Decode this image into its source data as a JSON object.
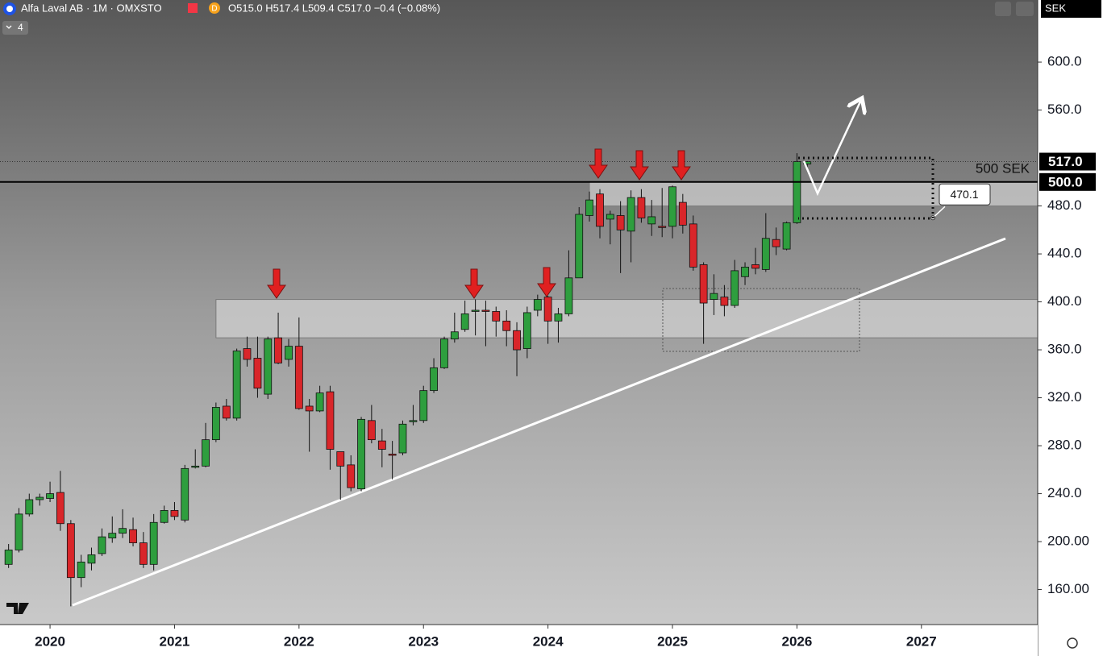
{
  "chart_data": {
    "type": "candlestick",
    "title": "Alfa Laval AB · 1M · OMXSTO",
    "badge": "D",
    "ohlc_text": "O515.0 H517.4 L509.4 C517.0 −0.4 (−0.08%)",
    "indicators_count": "4",
    "currency": "SEK",
    "up_color": "#2e9e3e",
    "down_color": "#d9262a",
    "x": [
      2019.667,
      2019.75,
      2019.833,
      2019.917,
      2020,
      2020.083,
      2020.167,
      2020.25,
      2020.333,
      2020.417,
      2020.5,
      2020.583,
      2020.667,
      2020.75,
      2020.833,
      2020.917,
      2021,
      2021.083,
      2021.167,
      2021.25,
      2021.333,
      2021.417,
      2021.5,
      2021.583,
      2021.667,
      2021.75,
      2021.833,
      2021.917,
      2022,
      2022.083,
      2022.167,
      2022.25,
      2022.333,
      2022.417,
      2022.5,
      2022.583,
      2022.667,
      2022.75,
      2022.833,
      2022.917,
      2023,
      2023.083,
      2023.167,
      2023.25,
      2023.333,
      2023.417,
      2023.5,
      2023.583,
      2023.667,
      2023.75,
      2023.833,
      2023.917,
      2024,
      2024.083,
      2024.167,
      2024.25,
      2024.333,
      2024.417,
      2024.5,
      2024.583,
      2024.667,
      2024.75,
      2024.833,
      2024.917,
      2025,
      2025.083,
      2025.167,
      2025.25,
      2025.333,
      2025.417,
      2025.5,
      2025.583,
      2025.667,
      2025.75,
      2025.833,
      2025.917,
      2026,
      2026.083
    ],
    "open": [
      181,
      193,
      223,
      235,
      236,
      241,
      215,
      170,
      182,
      190,
      203,
      207,
      210,
      199,
      181,
      216,
      226,
      218,
      262,
      263,
      285,
      313,
      303,
      361,
      353,
      323,
      370,
      352,
      363,
      313,
      309,
      325,
      275,
      264,
      244,
      301,
      284,
      273,
      274,
      300,
      301,
      326,
      345,
      369,
      377,
      392,
      393,
      392,
      384,
      376,
      361,
      393,
      404,
      384,
      390,
      420,
      472,
      490,
      469,
      472,
      459,
      487,
      465,
      463,
      463,
      483,
      465,
      431,
      402,
      404,
      397,
      421,
      431,
      427,
      452,
      444,
      466,
      515
    ],
    "high": [
      198,
      228,
      240,
      240,
      250,
      259,
      218,
      189,
      195,
      211,
      221,
      227,
      220,
      208,
      223,
      230,
      233,
      264,
      277,
      299,
      316,
      319,
      361,
      371,
      371,
      371,
      391,
      369,
      387,
      319,
      330,
      330,
      275,
      272,
      304,
      314,
      294,
      284,
      301,
      314,
      330,
      353,
      371,
      391,
      401,
      402,
      401,
      396,
      393,
      383,
      396,
      406,
      405,
      395,
      443,
      479,
      492,
      494,
      476,
      484,
      493,
      494,
      485,
      495,
      497,
      490,
      472,
      433,
      423,
      414,
      435,
      433,
      445,
      474,
      462,
      467,
      524,
      517.4
    ],
    "low": [
      178,
      191,
      221,
      230,
      233,
      209,
      146,
      162,
      176,
      188,
      199,
      203,
      196,
      178,
      176,
      215,
      218,
      216,
      261,
      262,
      283,
      301,
      301,
      346,
      320,
      319,
      348,
      346,
      310,
      275,
      308,
      260,
      235,
      242,
      242,
      282,
      262,
      252,
      272,
      297,
      299,
      324,
      344,
      366,
      375,
      372,
      363,
      371,
      363,
      338,
      353,
      388,
      365,
      366,
      388,
      420,
      467,
      453,
      448,
      424,
      433,
      466,
      455,
      454,
      453,
      457,
      426,
      365,
      389,
      388,
      395,
      414,
      423,
      425,
      439,
      443,
      465,
      509.4
    ],
    "close": [
      193,
      223,
      235,
      237,
      240,
      215,
      170,
      183,
      189,
      204,
      207,
      211,
      199,
      181,
      216,
      226,
      221,
      261,
      263,
      285,
      312,
      303,
      359,
      352,
      328,
      369,
      349,
      363,
      311,
      309,
      324,
      277,
      263,
      245,
      302,
      285,
      277,
      272,
      298,
      301,
      326,
      345,
      369,
      375,
      390,
      393,
      392,
      384,
      376,
      360,
      391,
      402,
      384,
      390,
      420,
      473,
      485,
      463,
      473,
      460,
      487,
      470,
      471,
      462,
      496,
      464,
      429,
      399,
      407,
      397,
      426,
      429,
      428,
      453,
      446,
      466,
      517,
      517
    ],
    "xlim": [
      2019.598,
      2027.934
    ],
    "xticks": [
      2020,
      2021,
      2022,
      2023,
      2024,
      2025,
      2026,
      2027
    ],
    "ylim": [
      130.8,
      651.8
    ],
    "yticks": [
      {
        "value": 160,
        "label": "160.00"
      },
      {
        "value": 200,
        "label": "200.00"
      },
      {
        "value": 240,
        "label": "240.0"
      },
      {
        "value": 280,
        "label": "280.0"
      },
      {
        "value": 320,
        "label": "320.0"
      },
      {
        "value": 360,
        "label": "360.0"
      },
      {
        "value": 400,
        "label": "400.0"
      },
      {
        "value": 440,
        "label": "440.0"
      },
      {
        "value": 480,
        "label": "480.0"
      },
      {
        "value": 560,
        "label": "560.0"
      },
      {
        "value": 600,
        "label": "600.0"
      }
    ],
    "last_price_label": "517.0",
    "level": {
      "value": 500,
      "label": "500 SEK",
      "axis_label": "500.0"
    },
    "callout": {
      "value": 470.1,
      "label": "470.1"
    },
    "zones": [
      {
        "from": 370,
        "to": 402,
        "x_from": 2021.333
      },
      {
        "from": 480,
        "to": 500,
        "x_from": 2024.333
      }
    ]
  }
}
